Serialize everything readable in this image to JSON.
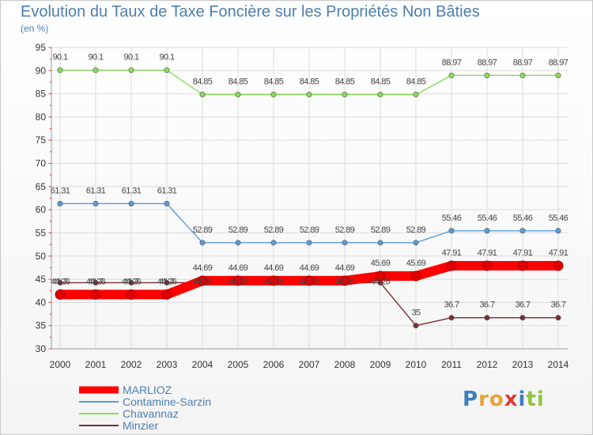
{
  "chart_data": {
    "type": "line",
    "title": "Evolution du Taux de Taxe Foncière sur les Propriétés Non Bâties",
    "subtitle": "(en %)",
    "xlabel": "",
    "ylabel": "",
    "x": [
      "2000",
      "2001",
      "2002",
      "2003",
      "2004",
      "2005",
      "2006",
      "2007",
      "2008",
      "2009",
      "2010",
      "2011",
      "2012",
      "2013",
      "2014"
    ],
    "ylim": [
      30,
      95
    ],
    "yticks": [
      30,
      35,
      40,
      45,
      50,
      55,
      60,
      65,
      70,
      75,
      80,
      85,
      90,
      95
    ],
    "legend_position": "bottom-left",
    "series": [
      {
        "name": "MARLIOZ",
        "color": "#ff0000",
        "values": [
          41.7,
          41.7,
          41.7,
          41.7,
          44.69,
          44.69,
          44.69,
          44.69,
          44.69,
          45.69,
          45.69,
          47.91,
          47.91,
          47.91,
          47.91
        ],
        "labels": [
          "41.7",
          "41.7",
          "41.7",
          "41.7",
          "44.69",
          "44.69",
          "44.69",
          "44.69",
          "44.69",
          "45.69",
          "45.69",
          "47.91",
          "47.91",
          "47.91",
          "47.91"
        ]
      },
      {
        "name": "Contamine-Sarzin",
        "color": "#5b9bd5",
        "values": [
          61.31,
          61.31,
          61.31,
          61.31,
          52.89,
          52.89,
          52.89,
          52.89,
          52.89,
          52.89,
          52.89,
          55.46,
          55.46,
          55.46,
          55.46
        ],
        "labels": [
          "61.31",
          "61.31",
          "61.31",
          "61.31",
          "52.89",
          "52.89",
          "52.89",
          "52.89",
          "52.89",
          "52.89",
          "52.89",
          "55.46",
          "55.46",
          "55.46",
          "55.46"
        ]
      },
      {
        "name": "Chavannaz",
        "color": "#88dd55",
        "values": [
          90.1,
          90.1,
          90.1,
          90.1,
          84.85,
          84.85,
          84.85,
          84.85,
          84.85,
          84.85,
          84.85,
          88.97,
          88.97,
          88.97,
          88.97
        ],
        "labels": [
          "90.1",
          "90.1",
          "90.1",
          "90.1",
          "84.85",
          "84.85",
          "84.85",
          "84.85",
          "84.85",
          "84.85",
          "84.85",
          "88.97",
          "88.97",
          "88.97",
          "88.97"
        ]
      },
      {
        "name": "Minzier",
        "color": "#7a2f36",
        "values": [
          44.26,
          44.26,
          44.26,
          44.26,
          44.26,
          44.26,
          44.26,
          44.26,
          44.26,
          44.26,
          35,
          36.7,
          36.7,
          36.7,
          36.7
        ],
        "labels": [
          "44.26",
          "44.26",
          "44.26",
          "44.26",
          "44.26",
          "44.26",
          "44.26",
          "44.26",
          "44.26",
          "44.26",
          "35",
          "36.7",
          "36.7",
          "36.7",
          "36.7"
        ]
      }
    ]
  },
  "logo": {
    "text": "Proxiti",
    "colors": [
      "#3d7fc1",
      "#e8a33a",
      "#e8a33a",
      "#e23b3b",
      "#3d7fc1",
      "#8dc63f",
      "#8dc63f"
    ]
  }
}
